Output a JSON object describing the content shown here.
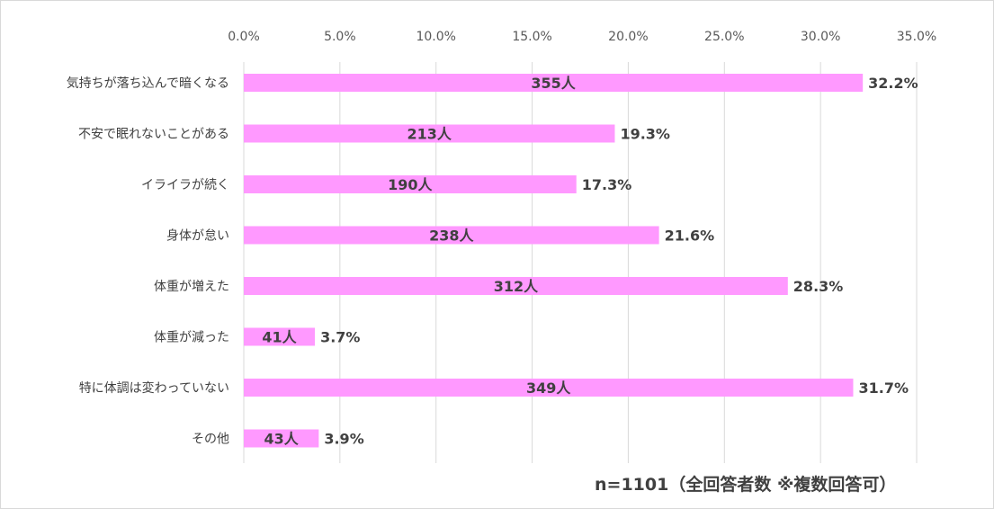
{
  "chart_data": {
    "type": "bar",
    "orientation": "horizontal",
    "categories": [
      "気持ちが落ち込んで暗くなる",
      "不安で眠れないことがある",
      "イライラが続く",
      "身体が怠い",
      "体重が増えた",
      "体重が減った",
      "特に体調は変わっていない",
      "その他"
    ],
    "values": [
      32.2,
      19.3,
      17.3,
      21.6,
      28.3,
      3.7,
      31.7,
      3.9
    ],
    "counts": [
      355,
      213,
      190,
      238,
      312,
      41,
      349,
      43
    ],
    "count_unit": "人",
    "value_unit": "%",
    "xlim": [
      0,
      35
    ],
    "xticks": [
      "0.0%",
      "5.0%",
      "10.0%",
      "15.0%",
      "20.0%",
      "25.0%",
      "30.0%",
      "35.0%"
    ],
    "axis_position": "top",
    "grid": true,
    "bar_color": "#ff99ff",
    "note": "n=1101（全回答者数 ※複数回答可）"
  }
}
